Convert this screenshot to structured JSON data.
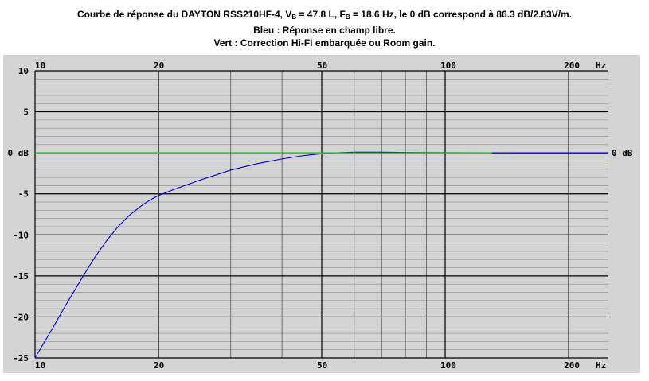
{
  "title": {
    "line1_prefix": "Courbe de réponse du DAYTON RSS210HF-4, V",
    "vb_sub": "B",
    "vb_value": " = 47.8 L, F",
    "fb_sub": "B",
    "line1_suffix": " = 18.6 Hz, le 0 dB correspond à 86.3 dB/2.83V/m.",
    "line2": "Bleu : Réponse en champ libre.",
    "line3": "Vert : Correction Hi-FI embarquée ou Room gain."
  },
  "colors": {
    "background": "#d4d4d4",
    "grid": "#000000",
    "blue_curve": "#0000cc",
    "green_curve": "#33dd33"
  },
  "chart_data": {
    "type": "line",
    "xscale": "log",
    "xlim": [
      10,
      250
    ],
    "ylim": [
      -25,
      10
    ],
    "x_ticks": [
      {
        "value": 10,
        "label": "10"
      },
      {
        "value": 20,
        "label": "20"
      },
      {
        "value": 50,
        "label": "50"
      },
      {
        "value": 100,
        "label": "100"
      },
      {
        "value": 200,
        "label": "200"
      }
    ],
    "x_unit": "Hz",
    "y_ticks": [
      {
        "value": 10,
        "label": "10"
      },
      {
        "value": 5,
        "label": "5"
      },
      {
        "value": 0,
        "label": "0 dB"
      },
      {
        "value": -5,
        "label": "-5"
      },
      {
        "value": -10,
        "label": "-10"
      },
      {
        "value": -15,
        "label": "-15"
      },
      {
        "value": -20,
        "label": "-20"
      },
      {
        "value": -25,
        "label": "-25"
      }
    ],
    "right_label": "0 dB",
    "series": [
      {
        "color": "#0000cc",
        "x": [
          10,
          11,
          12,
          13,
          14,
          15,
          16,
          17,
          18,
          19,
          20,
          22,
          25,
          28,
          30,
          35,
          40,
          45,
          50,
          55,
          60,
          70,
          80,
          100,
          130,
          150,
          200,
          250
        ],
        "y": [
          -25,
          -21.5,
          -18.2,
          -15.3,
          -12.7,
          -10.6,
          -8.9,
          -7.6,
          -6.6,
          -5.8,
          -5.2,
          -4.4,
          -3.4,
          -2.6,
          -2.1,
          -1.3,
          -0.75,
          -0.35,
          -0.1,
          0.02,
          0.08,
          0.08,
          0.05,
          0.02,
          0.01,
          0,
          0,
          0
        ]
      },
      {
        "color": "#33dd33",
        "x": [
          10,
          130
        ],
        "y": [
          0,
          0
        ]
      }
    ]
  }
}
